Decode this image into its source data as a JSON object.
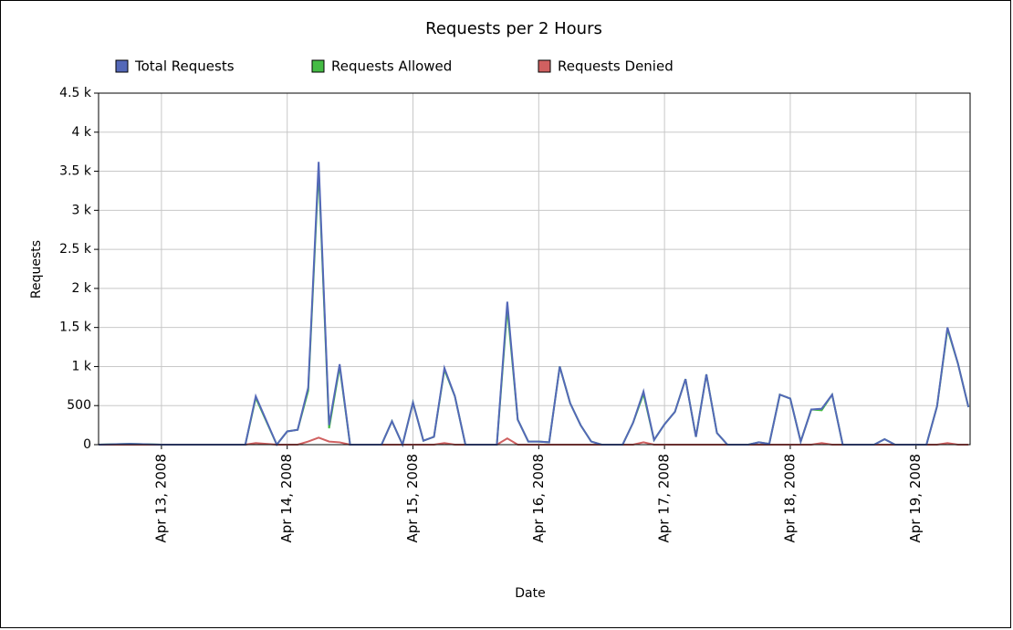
{
  "chart_data": {
    "type": "line",
    "title": "Requests per 2 Hours",
    "x_label": "Date",
    "y_label": "Requests",
    "x": [
      12.5,
      12.75,
      13.0,
      13.25,
      13.667,
      13.75,
      13.917,
      14.0,
      14.083,
      14.167,
      14.25,
      14.333,
      14.417,
      14.5,
      14.75,
      14.833,
      14.917,
      15.0,
      15.083,
      15.167,
      15.25,
      15.333,
      15.417,
      15.667,
      15.75,
      15.833,
      15.917,
      16.0,
      16.083,
      16.167,
      16.25,
      16.333,
      16.417,
      16.5,
      16.667,
      16.75,
      16.833,
      16.917,
      17.0,
      17.083,
      17.167,
      17.25,
      17.333,
      17.417,
      17.5,
      17.667,
      17.75,
      17.833,
      17.917,
      18.0,
      18.083,
      18.167,
      18.25,
      18.333,
      18.417,
      18.667,
      18.75,
      18.833,
      19.083,
      19.167,
      19.25,
      19.333,
      19.417
    ],
    "series": [
      {
        "name": "Total Requests",
        "color": "#5468b8",
        "values": [
          0,
          10,
          0,
          0,
          0,
          620,
          0,
          170,
          190,
          730,
          3620,
          250,
          1030,
          0,
          0,
          300,
          0,
          540,
          50,
          100,
          980,
          620,
          0,
          0,
          1830,
          320,
          40,
          40,
          30,
          1000,
          530,
          250,
          40,
          0,
          0,
          280,
          680,
          60,
          260,
          420,
          840,
          100,
          900,
          150,
          0,
          0,
          30,
          10,
          640,
          590,
          40,
          450,
          460,
          640,
          0,
          0,
          70,
          0,
          0,
          490,
          1500,
          1040,
          480
        ]
      },
      {
        "name": "Requests Allowed",
        "color": "#44bb44",
        "values": [
          0,
          10,
          0,
          0,
          0,
          600,
          0,
          170,
          190,
          690,
          3530,
          210,
          1000,
          0,
          0,
          300,
          0,
          540,
          50,
          100,
          960,
          620,
          0,
          0,
          1750,
          320,
          40,
          40,
          30,
          1000,
          530,
          250,
          40,
          0,
          0,
          280,
          650,
          60,
          260,
          420,
          840,
          100,
          900,
          150,
          0,
          0,
          30,
          10,
          640,
          590,
          40,
          450,
          440,
          640,
          0,
          0,
          70,
          0,
          0,
          490,
          1480,
          1040,
          480
        ]
      },
      {
        "name": "Requests Denied",
        "color": "#d06060",
        "values": [
          0,
          0,
          0,
          0,
          0,
          20,
          0,
          0,
          0,
          40,
          90,
          40,
          30,
          0,
          0,
          0,
          0,
          0,
          0,
          0,
          20,
          0,
          0,
          0,
          80,
          0,
          0,
          0,
          0,
          0,
          0,
          0,
          0,
          0,
          0,
          0,
          30,
          0,
          0,
          0,
          0,
          0,
          0,
          0,
          0,
          0,
          0,
          0,
          0,
          0,
          0,
          0,
          20,
          0,
          0,
          0,
          0,
          0,
          0,
          0,
          20,
          0,
          0
        ]
      }
    ],
    "xlim": [
      12.5,
      19.43
    ],
    "xticks": [
      {
        "value": 13,
        "label": "Apr 13, 2008"
      },
      {
        "value": 14,
        "label": "Apr 14, 2008"
      },
      {
        "value": 15,
        "label": "Apr 15, 2008"
      },
      {
        "value": 16,
        "label": "Apr 16, 2008"
      },
      {
        "value": 17,
        "label": "Apr 17, 2008"
      },
      {
        "value": 18,
        "label": "Apr 18, 2008"
      },
      {
        "value": 19,
        "label": "Apr 19, 2008"
      }
    ],
    "ylim": [
      0,
      4500
    ],
    "yticks": [
      0,
      500,
      {
        "value": 1000,
        "label": "1 k"
      },
      {
        "value": 1500,
        "label": "1.5 k"
      },
      {
        "value": 2000,
        "label": "2 k"
      },
      {
        "value": 2500,
        "label": "2.5 k"
      },
      {
        "value": 3000,
        "label": "3 k"
      },
      {
        "value": 3500,
        "label": "3.5 k"
      },
      {
        "value": 4000,
        "label": "4 k"
      },
      {
        "value": 4500,
        "label": "4.5 k"
      }
    ],
    "grid": true
  }
}
